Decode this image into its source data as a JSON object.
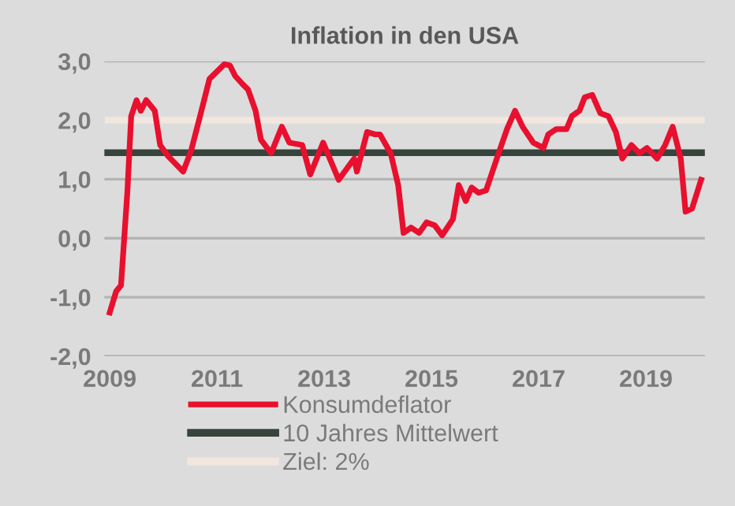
{
  "chart_data": {
    "type": "line",
    "title": "Inflation in den USA",
    "x": [
      2009.0,
      2009.12,
      2009.21,
      2009.33,
      2009.4,
      2009.5,
      2009.58,
      2009.68,
      2009.84,
      2009.94,
      2010.08,
      2010.37,
      2010.52,
      2010.71,
      2010.86,
      2011.14,
      2011.24,
      2011.34,
      2011.48,
      2011.58,
      2011.72,
      2011.82,
      2012.01,
      2012.21,
      2012.35,
      2012.59,
      2012.74,
      2012.98,
      2013.27,
      2013.56,
      2013.61,
      2013.8,
      2013.95,
      2014.04,
      2014.24,
      2014.38,
      2014.48,
      2014.62,
      2014.77,
      2014.91,
      2015.06,
      2015.2,
      2015.4,
      2015.51,
      2015.64,
      2015.75,
      2015.88,
      2016.02,
      2016.22,
      2016.41,
      2016.56,
      2016.7,
      2016.9,
      2017.09,
      2017.18,
      2017.33,
      2017.52,
      2017.62,
      2017.76,
      2017.86,
      2018.0,
      2018.15,
      2018.3,
      2018.44,
      2018.56,
      2018.73,
      2018.88,
      2019.02,
      2019.21,
      2019.36,
      2019.5,
      2019.65,
      2019.74,
      2019.86,
      2020.03
    ],
    "series": [
      {
        "name": "Konsumdeflator",
        "color": "#e8102e",
        "values": [
          -1.26,
          -0.9,
          -0.8,
          0.8,
          2.07,
          2.34,
          2.16,
          2.34,
          2.16,
          1.58,
          1.4,
          1.13,
          1.49,
          2.16,
          2.7,
          2.95,
          2.93,
          2.75,
          2.61,
          2.52,
          2.16,
          1.67,
          1.44,
          1.89,
          1.62,
          1.58,
          1.08,
          1.62,
          0.99,
          1.35,
          1.13,
          1.8,
          1.76,
          1.76,
          1.44,
          0.9,
          0.09,
          0.18,
          0.09,
          0.27,
          0.22,
          0.05,
          0.32,
          0.9,
          0.63,
          0.86,
          0.77,
          0.81,
          1.35,
          1.85,
          2.16,
          1.89,
          1.62,
          1.53,
          1.76,
          1.85,
          1.85,
          2.07,
          2.16,
          2.39,
          2.43,
          2.12,
          2.07,
          1.8,
          1.35,
          1.58,
          1.44,
          1.53,
          1.35,
          1.58,
          1.89,
          1.35,
          0.45,
          0.5,
          0.99
        ]
      }
    ],
    "ref_lines": [
      {
        "axis": "y",
        "value": 1.45,
        "label": "10 Jahres Mittelwert",
        "color": "#36443b"
      },
      {
        "axis": "y",
        "value": 2.0,
        "label": "Ziel: 2%",
        "color": "#f2e6df"
      }
    ],
    "xlim": [
      2008.9,
      2020.1
    ],
    "xticks": [
      2009,
      2011,
      2013,
      2015,
      2017,
      2019
    ],
    "ylim": [
      -2,
      3
    ],
    "yticks": [
      {
        "value": -2,
        "label": "-2,0"
      },
      {
        "value": -1,
        "label": "-1,0"
      },
      {
        "value": 0,
        "label": "0,0"
      },
      {
        "value": 1,
        "label": "1,0"
      },
      {
        "value": 2,
        "label": "2,0"
      },
      {
        "value": 3,
        "label": "3,0"
      }
    ],
    "grid": "y",
    "legend": "bottom",
    "line_style": "solid",
    "marker": "none"
  }
}
